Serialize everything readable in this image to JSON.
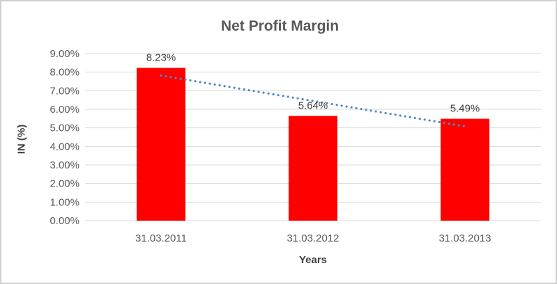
{
  "frame": {
    "background_color": "#ffffff",
    "border_color": "#cfcfcf"
  },
  "chart_data": {
    "type": "bar",
    "title": "Net Profit Margin",
    "categories": [
      "31.03.2011",
      "31.03.2012",
      "31.03.2013"
    ],
    "values": [
      8.23,
      5.64,
      5.49
    ],
    "data_labels": [
      "8.23%",
      "5.64%",
      "5.49%"
    ],
    "xlabel": "Years",
    "ylabel": "IN (%)",
    "ylim": [
      0,
      9
    ],
    "ytick_step": 1,
    "ytick_labels": [
      "0.00%",
      "1.00%",
      "2.00%",
      "3.00%",
      "4.00%",
      "5.00%",
      "6.00%",
      "7.00%",
      "8.00%",
      "9.00%"
    ],
    "grid": true,
    "legend": "none",
    "bar_color": "#ff0000",
    "gridline_color": "#d9d9d9",
    "axis_text_color": "#595959",
    "label_text_color": "#404040",
    "trendline": {
      "type": "linear",
      "style": "dotted",
      "color": "#4f87c7",
      "start_value": 7.82,
      "end_value": 5.08
    }
  }
}
